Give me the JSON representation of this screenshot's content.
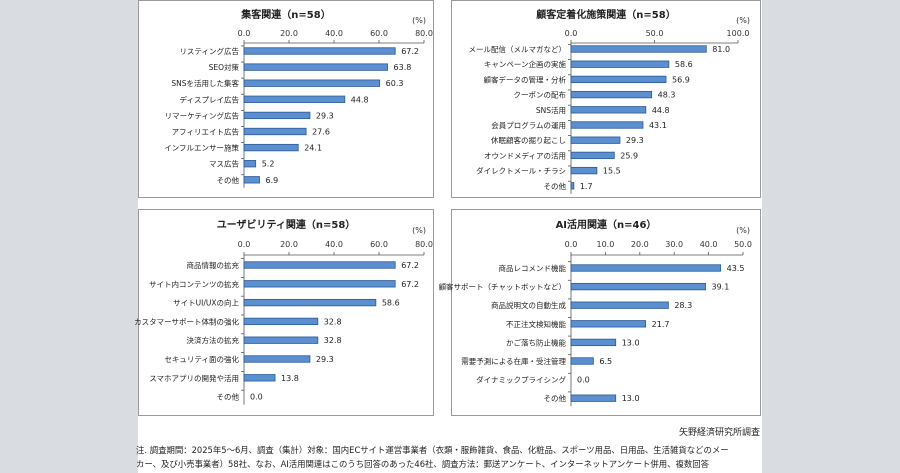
{
  "chart_data": [
    {
      "type": "bar",
      "orientation": "horizontal",
      "title": "集客関連（n=58）",
      "unit": "(%)",
      "ticks": [
        "0.0",
        "20.0",
        "40.0",
        "60.0",
        "80.0"
      ],
      "xlim": [
        0,
        80
      ],
      "categories": [
        "リスティング広告",
        "SEO対策",
        "SNSを活用した集客",
        "ディスプレイ広告",
        "リマーケティング広告",
        "アフィリエイト広告",
        "インフルエンサー施策",
        "マス広告",
        "その他"
      ],
      "values": [
        67.2,
        63.8,
        60.3,
        44.8,
        29.3,
        27.6,
        24.1,
        5.2,
        6.9
      ],
      "labels": [
        "67.2",
        "63.8",
        "60.3",
        "44.8",
        "29.3",
        "27.6",
        "24.1",
        "5.2",
        "6.9"
      ]
    },
    {
      "type": "bar",
      "orientation": "horizontal",
      "title": "顧客定着化施策関連（n=58）",
      "unit": "(%)",
      "ticks": [
        "0.0",
        "50.0",
        "100.0"
      ],
      "xlim": [
        0,
        100
      ],
      "categories": [
        "メール配信（メルマガなど）",
        "キャンペーン企画の実施",
        "顧客データの管理・分析",
        "クーポンの配布",
        "SNS活用",
        "会員プログラムの運用",
        "休眠顧客の掘り起こし",
        "オウンドメディアの活用",
        "ダイレクトメール・チラシ",
        "その他"
      ],
      "values": [
        81.0,
        58.6,
        56.9,
        48.3,
        44.8,
        43.1,
        29.3,
        25.9,
        15.5,
        1.7
      ],
      "labels": [
        "81.0",
        "58.6",
        "56.9",
        "48.3",
        "44.8",
        "43.1",
        "29.3",
        "25.9",
        "15.5",
        "1.7"
      ]
    },
    {
      "type": "bar",
      "orientation": "horizontal",
      "title": "ユーザビリティ関連（n=58）",
      "unit": "(%)",
      "ticks": [
        "0.0",
        "20.0",
        "40.0",
        "60.0",
        "80.0"
      ],
      "xlim": [
        0,
        80
      ],
      "categories": [
        "商品情報の拡充",
        "サイト内コンテンツの拡充",
        "サイトUI/UXの向上",
        "カスタマーサポート体制の強化",
        "決済方法の拡充",
        "セキュリティ面の強化",
        "スマホアプリの開発や活用",
        "その他"
      ],
      "values": [
        67.2,
        67.2,
        58.6,
        32.8,
        32.8,
        29.3,
        13.8,
        0.0
      ],
      "labels": [
        "67.2",
        "67.2",
        "58.6",
        "32.8",
        "32.8",
        "29.3",
        "13.8",
        "0.0"
      ]
    },
    {
      "type": "bar",
      "orientation": "horizontal",
      "title": "AI活用関連（n=46）",
      "unit": "(%)",
      "ticks": [
        "0.0",
        "10.0",
        "20.0",
        "30.0",
        "40.0",
        "50.0"
      ],
      "xlim": [
        0,
        50
      ],
      "categories": [
        "商品レコメンド機能",
        "顧客サポート（チャットボットなど）",
        "商品説明文の自動生成",
        "不正注文検知機能",
        "かご落ち防止機能",
        "需要予測による在庫・受注管理",
        "ダイナミックプライシング",
        "その他"
      ],
      "values": [
        43.5,
        39.1,
        28.3,
        21.7,
        13.0,
        6.5,
        0.0,
        13.0
      ],
      "labels": [
        "43.5",
        "39.1",
        "28.3",
        "21.7",
        "13.0",
        "6.5",
        "0.0",
        "13.0"
      ]
    }
  ],
  "footer": {
    "source": "矢野経済研究所調査",
    "note_line1": "注. 調査期間：2025年5～6月、調査（集計）対象：国内ECサイト運営事業者（衣類・服飾雑貨、食品、化粧品、スポーツ用品、日用品、生活雑貨などのメー",
    "note_line2": "カー、及び小売事業者）58社、なお、AI活用関連はこのうち回答のあった46社、調査方法：郵送アンケート、インターネットアンケート併用、複数回答"
  },
  "colors": {
    "bar_fill": "#5b8fd0",
    "bar_stroke": "#2c5a96"
  }
}
